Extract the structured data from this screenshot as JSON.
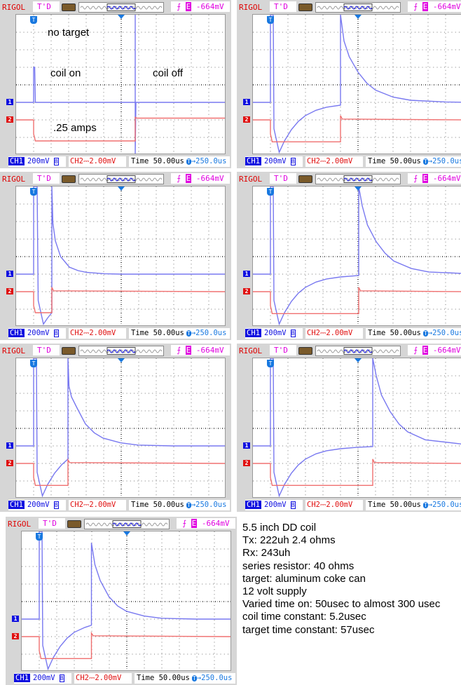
{
  "scope_ui": {
    "brand": "RIGOL",
    "trigger_status": "T'D",
    "trigger_level": "-664mV",
    "trigger_edge_icon": "rising-edge-icon",
    "ch1_label": "CH1",
    "ch1_scale": "200mV",
    "ch1_bw": "B",
    "ch2_label": "CH2",
    "ch2_scale": "2.00mV",
    "timebase": "Time 50.00us",
    "trigger_offset": "250.0us",
    "ch1_marker": "1",
    "ch2_marker": "2",
    "trigger_marker": "T",
    "colors": {
      "ch1": "#7878f0",
      "ch2": "#f07070",
      "brand": "#e00000",
      "trigger_text": "#e000e0"
    }
  },
  "notes": [
    "5.5 inch DD coil",
    "Tx: 222uh 2.4 ohms",
    "Rx: 243uh",
    "series resistor: 40 ohms",
    "target: aluminum coke can",
    "12 volt supply",
    "Varied time on: 50usec to almost 300 usec",
    "coil time constant: 5.2usec",
    "target time constant: 57usec"
  ],
  "chart_data": [
    {
      "type": "line",
      "xlim_us": [
        -50,
        550
      ],
      "ch1_ylim_mV": [
        -600,
        1000
      ],
      "ch2_ylim_mV": [
        -4,
        12
      ],
      "grid": true,
      "annotations": [
        "no target",
        "coil on",
        "coil off",
        ".25 amps"
      ],
      "series": [
        {
          "name": "CH1",
          "points": [
            [
              -50,
              0
            ],
            [
              0,
              0
            ],
            [
              0,
              400
            ],
            [
              3,
              400
            ],
            [
              5,
              0
            ],
            [
              290,
              0
            ],
            [
              290,
              1000
            ],
            [
              290,
              -600
            ],
            [
              292,
              0
            ],
            [
              550,
              0
            ]
          ]
        },
        {
          "name": "CH2",
          "points": [
            [
              -50,
              0
            ],
            [
              0,
              0
            ],
            [
              0,
              -1.6
            ],
            [
              5,
              -2.4
            ],
            [
              290,
              -2.4
            ],
            [
              290,
              0.3
            ],
            [
              295,
              0.2
            ],
            [
              550,
              0.2
            ]
          ]
        }
      ]
    },
    {
      "type": "line",
      "xlim_us": [
        -50,
        550
      ],
      "ch1_ylim_mV": [
        -600,
        1000
      ],
      "ch2_ylim_mV": [
        -4,
        12
      ],
      "grid": true,
      "series": [
        {
          "name": "CH1",
          "points": [
            [
              -50,
              0
            ],
            [
              0,
              0
            ],
            [
              0,
              1000
            ],
            [
              8,
              1000
            ],
            [
              10,
              -300
            ],
            [
              25,
              -570
            ],
            [
              40,
              -440
            ],
            [
              60,
              -310
            ],
            [
              80,
              -215
            ],
            [
              100,
              -150
            ],
            [
              130,
              -90
            ],
            [
              160,
              -55
            ],
            [
              200,
              -32
            ],
            [
              200,
              1000
            ],
            [
              210,
              700
            ],
            [
              225,
              520
            ],
            [
              250,
              345
            ],
            [
              275,
              220
            ],
            [
              300,
              140
            ],
            [
              350,
              60
            ],
            [
              400,
              24
            ],
            [
              500,
              5
            ],
            [
              550,
              2
            ]
          ]
        },
        {
          "name": "CH2",
          "points": [
            [
              -50,
              0
            ],
            [
              0,
              0
            ],
            [
              0,
              -1.6
            ],
            [
              5,
              -2.5
            ],
            [
              200,
              -2.5
            ],
            [
              200,
              0.5
            ],
            [
              205,
              0.1
            ],
            [
              550,
              0
            ]
          ]
        }
      ]
    },
    {
      "type": "line",
      "xlim_us": [
        -50,
        550
      ],
      "ch1_ylim_mV": [
        -600,
        1000
      ],
      "ch2_ylim_mV": [
        -4,
        12
      ],
      "grid": true,
      "series": [
        {
          "name": "CH1",
          "points": [
            [
              -50,
              0
            ],
            [
              0,
              0
            ],
            [
              0,
              1000
            ],
            [
              10,
              1000
            ],
            [
              13,
              -300
            ],
            [
              28,
              -570
            ],
            [
              40,
              -500
            ],
            [
              52,
              -440
            ],
            [
              52,
              1000
            ],
            [
              55,
              580
            ],
            [
              62,
              380
            ],
            [
              77,
              200
            ],
            [
              102,
              80
            ],
            [
              127,
              40
            ],
            [
              152,
              20
            ],
            [
              202,
              5
            ],
            [
              252,
              0
            ],
            [
              550,
              0
            ]
          ]
        },
        {
          "name": "CH2",
          "points": [
            [
              -50,
              0
            ],
            [
              0,
              0
            ],
            [
              0,
              -1.6
            ],
            [
              5,
              -2.4
            ],
            [
              52,
              -2.4
            ],
            [
              52,
              0.5
            ],
            [
              57,
              0.1
            ],
            [
              550,
              0
            ]
          ]
        }
      ]
    },
    {
      "type": "line",
      "xlim_us": [
        -50,
        550
      ],
      "ch1_ylim_mV": [
        -600,
        1000
      ],
      "ch2_ylim_mV": [
        -4,
        12
      ],
      "grid": true,
      "series": [
        {
          "name": "CH1",
          "points": [
            [
              -50,
              0
            ],
            [
              0,
              0
            ],
            [
              0,
              1000
            ],
            [
              8,
              1000
            ],
            [
              10,
              -300
            ],
            [
              25,
              -570
            ],
            [
              40,
              -440
            ],
            [
              60,
              -310
            ],
            [
              80,
              -215
            ],
            [
              100,
              -150
            ],
            [
              130,
              -90
            ],
            [
              160,
              -55
            ],
            [
              200,
              -32
            ],
            [
              252,
              -15
            ],
            [
              252,
              1000
            ],
            [
              262,
              780
            ],
            [
              277,
              560
            ],
            [
              302,
              370
            ],
            [
              327,
              240
            ],
            [
              352,
              150
            ],
            [
              402,
              65
            ],
            [
              452,
              25
            ],
            [
              550,
              8
            ]
          ]
        },
        {
          "name": "CH2",
          "points": [
            [
              -50,
              0
            ],
            [
              0,
              0
            ],
            [
              0,
              -1.6
            ],
            [
              5,
              -2.5
            ],
            [
              252,
              -2.5
            ],
            [
              252,
              0.5
            ],
            [
              257,
              0.1
            ],
            [
              550,
              0
            ]
          ]
        }
      ]
    },
    {
      "type": "line",
      "xlim_us": [
        -50,
        550
      ],
      "ch1_ylim_mV": [
        -600,
        1000
      ],
      "ch2_ylim_mV": [
        -4,
        12
      ],
      "grid": true,
      "series": [
        {
          "name": "CH1",
          "points": [
            [
              -50,
              0
            ],
            [
              0,
              0
            ],
            [
              0,
              1000
            ],
            [
              8,
              1000
            ],
            [
              10,
              -300
            ],
            [
              25,
              -570
            ],
            [
              40,
              -440
            ],
            [
              60,
              -310
            ],
            [
              80,
              -215
            ],
            [
              98,
              -150
            ],
            [
              98,
              1000
            ],
            [
              101,
              680
            ],
            [
              108,
              560
            ],
            [
              123,
              440
            ],
            [
              148,
              250
            ],
            [
              173,
              150
            ],
            [
              198,
              90
            ],
            [
              248,
              35
            ],
            [
              298,
              10
            ],
            [
              398,
              0
            ],
            [
              550,
              0
            ]
          ]
        },
        {
          "name": "CH2",
          "points": [
            [
              -50,
              0
            ],
            [
              0,
              0
            ],
            [
              0,
              -1.6
            ],
            [
              5,
              -2.5
            ],
            [
              98,
              -2.5
            ],
            [
              98,
              0.4
            ],
            [
              103,
              0.1
            ],
            [
              550,
              0
            ]
          ]
        }
      ]
    },
    {
      "type": "line",
      "xlim_us": [
        -50,
        550
      ],
      "ch1_ylim_mV": [
        -600,
        1000
      ],
      "ch2_ylim_mV": [
        -4,
        12
      ],
      "grid": true,
      "series": [
        {
          "name": "CH1",
          "points": [
            [
              -50,
              0
            ],
            [
              0,
              0
            ],
            [
              0,
              1000
            ],
            [
              8,
              1000
            ],
            [
              10,
              -300
            ],
            [
              25,
              -570
            ],
            [
              40,
              -440
            ],
            [
              60,
              -310
            ],
            [
              80,
              -215
            ],
            [
              100,
              -150
            ],
            [
              130,
              -90
            ],
            [
              160,
              -55
            ],
            [
              200,
              -32
            ],
            [
              250,
              -15
            ],
            [
              292,
              -8
            ],
            [
              292,
              1000
            ],
            [
              302,
              800
            ],
            [
              317,
              580
            ],
            [
              342,
              390
            ],
            [
              367,
              250
            ],
            [
              392,
              160
            ],
            [
              442,
              70
            ],
            [
              550,
              20
            ]
          ]
        },
        {
          "name": "CH2",
          "points": [
            [
              -50,
              0
            ],
            [
              0,
              0
            ],
            [
              0,
              -1.6
            ],
            [
              5,
              -2.5
            ],
            [
              292,
              -2.5
            ],
            [
              292,
              0.5
            ],
            [
              297,
              0.1
            ],
            [
              550,
              0
            ]
          ]
        }
      ]
    },
    {
      "type": "line",
      "xlim_us": [
        -50,
        550
      ],
      "ch1_ylim_mV": [
        -600,
        1000
      ],
      "ch2_ylim_mV": [
        -4,
        12
      ],
      "grid": true,
      "series": [
        {
          "name": "CH1",
          "points": [
            [
              -50,
              0
            ],
            [
              0,
              0
            ],
            [
              0,
              1000
            ],
            [
              8,
              1000
            ],
            [
              10,
              -300
            ],
            [
              25,
              -570
            ],
            [
              40,
              -440
            ],
            [
              60,
              -310
            ],
            [
              80,
              -215
            ],
            [
              100,
              -150
            ],
            [
              130,
              -95
            ],
            [
              149,
              -70
            ],
            [
              149,
              870
            ],
            [
              159,
              620
            ],
            [
              174,
              440
            ],
            [
              199,
              255
            ],
            [
              224,
              150
            ],
            [
              249,
              90
            ],
            [
              299,
              35
            ],
            [
              349,
              10
            ],
            [
              449,
              0
            ],
            [
              550,
              0
            ]
          ]
        },
        {
          "name": "CH2",
          "points": [
            [
              -50,
              0
            ],
            [
              0,
              0
            ],
            [
              0,
              -1.6
            ],
            [
              5,
              -2.5
            ],
            [
              149,
              -2.5
            ],
            [
              149,
              0.4
            ],
            [
              154,
              0.1
            ],
            [
              550,
              0
            ]
          ]
        }
      ]
    }
  ]
}
